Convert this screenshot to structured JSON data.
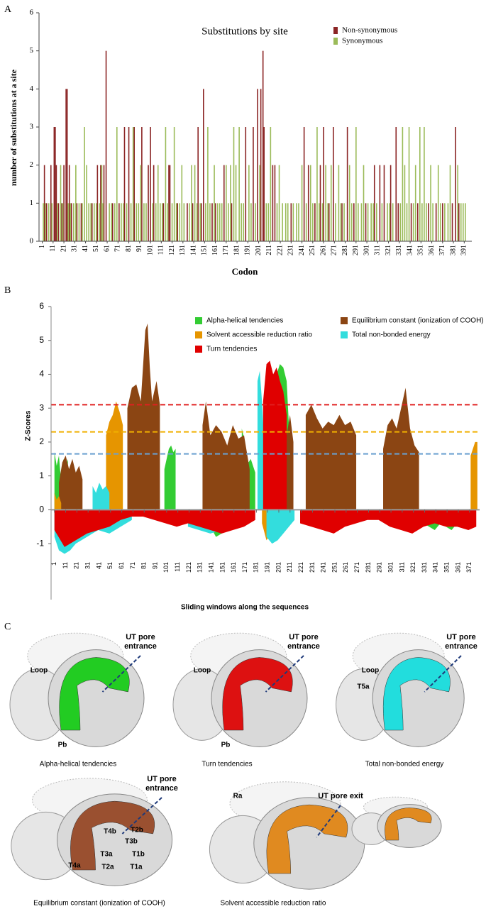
{
  "chart_data": [
    {
      "type": "bar",
      "panel_label": "A",
      "title": "Substitutions by site",
      "x_label": "Codon",
      "y_label": "number of substitutions at a site",
      "xlim": [
        -2,
        398
      ],
      "ylim": [
        0,
        6
      ],
      "yticks": [
        0,
        1,
        2,
        3,
        4,
        5,
        6
      ],
      "xticks": [
        1,
        11,
        21,
        31,
        41,
        51,
        61,
        71,
        81,
        91,
        101,
        111,
        121,
        131,
        141,
        151,
        161,
        171,
        181,
        191,
        201,
        211,
        221,
        231,
        241,
        251,
        261,
        271,
        281,
        291,
        301,
        311,
        321,
        331,
        341,
        351,
        361,
        371,
        381,
        391
      ],
      "series": [
        {
          "name": "Non-synonymous",
          "color": "#8b2525",
          "x": [
            3,
            5,
            9,
            12,
            13,
            14,
            16,
            19,
            21,
            23,
            24,
            26,
            28,
            33,
            37,
            47,
            52,
            55,
            58,
            60,
            66,
            72,
            77,
            81,
            86,
            93,
            99,
            101,
            104,
            113,
            118,
            119,
            126,
            135,
            140,
            145,
            148,
            150,
            158,
            161,
            169,
            176,
            189,
            196,
            200,
            203,
            205,
            206,
            214,
            216,
            231,
            243,
            247,
            253,
            258,
            261,
            266,
            270,
            278,
            283,
            289,
            300,
            308,
            313,
            317,
            323,
            328,
            330,
            342,
            348,
            358,
            365,
            371,
            380,
            383,
            386
          ],
          "values": [
            2,
            1,
            2,
            3,
            3,
            2,
            1,
            1,
            2,
            4,
            4,
            2,
            1,
            1,
            1,
            1,
            2,
            2,
            2,
            5,
            1,
            1,
            3,
            3,
            3,
            3,
            2,
            3,
            2,
            1,
            2,
            2,
            1,
            1,
            1,
            3,
            1,
            4,
            1,
            1,
            2,
            1,
            3,
            3,
            4,
            4,
            5,
            3,
            2,
            2,
            1,
            3,
            2,
            1,
            2,
            3,
            1,
            3,
            1,
            3,
            1,
            1,
            2,
            2,
            2,
            2,
            3,
            1,
            1,
            1,
            1,
            1,
            1,
            1,
            3,
            1
          ]
        },
        {
          "name": "Synonymous",
          "color": "#9bbb59",
          "x": [
            2,
            4,
            7,
            10,
            15,
            18,
            20,
            25,
            27,
            30,
            32,
            35,
            38,
            40,
            42,
            44,
            46,
            49,
            51,
            54,
            56,
            57,
            63,
            65,
            68,
            70,
            74,
            76,
            79,
            83,
            85,
            88,
            90,
            92,
            95,
            97,
            103,
            106,
            108,
            110,
            112,
            115,
            117,
            121,
            123,
            125,
            128,
            130,
            132,
            137,
            139,
            142,
            144,
            147,
            152,
            154,
            156,
            160,
            163,
            165,
            167,
            171,
            173,
            175,
            178,
            180,
            183,
            185,
            187,
            192,
            194,
            198,
            202,
            208,
            210,
            212,
            218,
            220,
            223,
            226,
            228,
            233,
            236,
            238,
            241,
            245,
            249,
            251,
            255,
            257,
            260,
            263,
            265,
            268,
            272,
            275,
            277,
            280,
            285,
            287,
            291,
            293,
            296,
            298,
            302,
            305,
            307,
            310,
            315,
            320,
            322,
            325,
            332,
            334,
            336,
            338,
            340,
            344,
            346,
            350,
            352,
            354,
            356,
            360,
            362,
            367,
            369,
            373,
            376,
            378,
            385,
            388,
            390,
            392
          ],
          "values": [
            1,
            1,
            1,
            1,
            1,
            2,
            1,
            1,
            1,
            1,
            2,
            1,
            1,
            3,
            2,
            1,
            1,
            1,
            1,
            1,
            2,
            1,
            1,
            1,
            1,
            3,
            1,
            1,
            1,
            1,
            3,
            1,
            1,
            2,
            1,
            1,
            1,
            1,
            2,
            1,
            1,
            3,
            1,
            1,
            3,
            1,
            1,
            2,
            1,
            1,
            2,
            2,
            1,
            1,
            1,
            3,
            1,
            2,
            1,
            1,
            1,
            2,
            1,
            2,
            3,
            2,
            3,
            1,
            1,
            2,
            1,
            1,
            2,
            1,
            1,
            3,
            1,
            2,
            1,
            1,
            1,
            1,
            1,
            1,
            2,
            1,
            2,
            1,
            3,
            1,
            1,
            2,
            1,
            2,
            1,
            2,
            1,
            1,
            2,
            1,
            3,
            1,
            1,
            2,
            1,
            1,
            1,
            1,
            1,
            1,
            1,
            1,
            1,
            3,
            2,
            1,
            3,
            1,
            2,
            3,
            1,
            3,
            1,
            2,
            1,
            2,
            1,
            1,
            1,
            2,
            2,
            1,
            1,
            1
          ]
        }
      ]
    },
    {
      "type": "area",
      "panel_label": "B",
      "x_label": "Sliding windows along the sequences",
      "y_label": "Z-Scores",
      "xlim": [
        -2,
        380
      ],
      "ylim": [
        -1.5,
        6
      ],
      "yticks": [
        -1,
        0,
        1,
        2,
        3,
        4,
        5,
        6
      ],
      "xticks": [
        1,
        11,
        21,
        31,
        41,
        51,
        61,
        71,
        81,
        91,
        101,
        111,
        121,
        131,
        141,
        151,
        161,
        171,
        181,
        191,
        201,
        211,
        221,
        231,
        241,
        251,
        261,
        271,
        281,
        291,
        301,
        311,
        321,
        331,
        341,
        351,
        361,
        371
      ],
      "thresholds": [
        {
          "value": 3.1,
          "color": "#e02020"
        },
        {
          "value": 2.3,
          "color": "#f0b000"
        },
        {
          "value": 1.65,
          "color": "#6aa0d0"
        }
      ],
      "series": [
        {
          "name": "Alpha-helical tendencies",
          "color": "#33cc33",
          "x": [
            1,
            3,
            5,
            7,
            9,
            11,
            13,
            null,
            99,
            101,
            103,
            105,
            107,
            109,
            null,
            168,
            170,
            172,
            174,
            176,
            178,
            180,
            null,
            196,
            199,
            202,
            205,
            208,
            210,
            null,
            140,
            145,
            150,
            155,
            160,
            null,
            330,
            335,
            340,
            345,
            350,
            355,
            360
          ],
          "values": [
            1.7,
            1.3,
            1.6,
            0.8,
            1.5,
            1.2,
            1.5,
            null,
            1.2,
            1.5,
            1.8,
            1.9,
            1.7,
            1.8,
            null,
            2.4,
            2.1,
            1.6,
            1.4,
            1.5,
            1.3,
            1.1,
            null,
            3.5,
            4.0,
            4.3,
            4.2,
            3.8,
            2.5,
            null,
            -0.5,
            -0.8,
            -0.7,
            -0.6,
            -0.5,
            null,
            -0.4,
            -0.5,
            -0.6,
            -0.4,
            -0.5,
            -0.6,
            -0.4
          ]
        },
        {
          "name": "Equilibrium constant (ionization of COOH)",
          "color": "#8b4513",
          "x": [
            5,
            8,
            11,
            14,
            17,
            20,
            23,
            26,
            null,
            66,
            70,
            74,
            78,
            82,
            84,
            86,
            88,
            92,
            95,
            null,
            133,
            136,
            140,
            145,
            150,
            155,
            160,
            165,
            170,
            175,
            null,
            205,
            208,
            211,
            214,
            null,
            225,
            230,
            235,
            240,
            245,
            250,
            255,
            260,
            265,
            270,
            null,
            294,
            298,
            302,
            306,
            310,
            314,
            318,
            322,
            326
          ],
          "values": [
            0.8,
            1.4,
            1.6,
            1.2,
            1.5,
            1.1,
            1.3,
            0.9,
            null,
            3.0,
            3.6,
            3.7,
            3.2,
            5.3,
            5.5,
            4.2,
            3.2,
            3.8,
            3.1,
            null,
            2.5,
            3.2,
            2.2,
            2.5,
            2.3,
            1.9,
            2.5,
            2.1,
            2.2,
            1.2,
            null,
            2.7,
            2.2,
            2.8,
            2.0,
            null,
            2.8,
            3.1,
            2.7,
            2.4,
            2.6,
            2.5,
            2.8,
            2.5,
            2.6,
            2.2,
            null,
            1.8,
            2.5,
            2.7,
            2.4,
            3.0,
            3.6,
            2.4,
            1.9,
            1.7
          ]
        },
        {
          "name": "Solvent accessible reduction ratio",
          "color": "#e69500",
          "x": [
            1,
            3,
            5,
            7,
            null,
            47,
            50,
            53,
            56,
            59,
            62,
            null,
            372,
            374,
            376,
            378,
            null,
            186,
            190,
            194,
            198,
            202
          ],
          "values": [
            0.5,
            0.3,
            0.4,
            0.2,
            null,
            2.2,
            2.6,
            2.8,
            3.2,
            2.9,
            2.5,
            null,
            1.6,
            1.8,
            2.0,
            2.0,
            null,
            -0.4,
            -0.9,
            -0.7,
            -0.8,
            -0.3
          ]
        },
        {
          "name": "Total non-bonded energy",
          "color": "#33dddd",
          "x": [
            35,
            38,
            41,
            44,
            47,
            50,
            null,
            182,
            184,
            186,
            188,
            190,
            null,
            1,
            5,
            10,
            15,
            20,
            25,
            30,
            40,
            50,
            60,
            70,
            null,
            120,
            130,
            140,
            150,
            160,
            null,
            190,
            195,
            200,
            205,
            210,
            215
          ],
          "values": [
            0.7,
            0.5,
            0.8,
            0.6,
            0.7,
            0.5,
            null,
            3.8,
            4.1,
            3.2,
            2.0,
            1.0,
            null,
            -0.8,
            -1.2,
            -1.3,
            -1.2,
            -1.0,
            -0.9,
            -0.8,
            -0.6,
            -0.7,
            -0.5,
            -0.3,
            null,
            -0.5,
            -0.6,
            -0.7,
            -0.6,
            -0.5,
            null,
            -0.8,
            -1.0,
            -0.9,
            -0.7,
            -0.5,
            -0.3
          ]
        },
        {
          "name": "Turn tendencies",
          "color": "#e00000",
          "x": [
            187,
            190,
            193,
            196,
            199,
            202,
            205,
            208,
            null,
            1,
            10,
            20,
            30,
            40,
            50,
            60,
            70,
            80,
            90,
            100,
            110,
            120,
            130,
            140,
            150,
            160,
            170,
            180,
            null,
            220,
            230,
            240,
            250,
            260,
            270,
            280,
            290,
            300,
            310,
            320,
            330,
            340,
            350,
            360,
            370,
            377
          ],
          "values": [
            3.2,
            4.3,
            4.4,
            4.0,
            4.2,
            3.8,
            3.5,
            2.8,
            null,
            -0.6,
            -1.1,
            -0.9,
            -0.7,
            -0.6,
            -0.5,
            -0.3,
            -0.2,
            -0.2,
            -0.3,
            -0.4,
            -0.5,
            -0.4,
            -0.5,
            -0.6,
            -0.7,
            -0.6,
            -0.5,
            -0.3,
            null,
            -0.4,
            -0.5,
            -0.6,
            -0.7,
            -0.5,
            -0.4,
            -0.3,
            -0.3,
            -0.5,
            -0.6,
            -0.7,
            -0.5,
            -0.4,
            -0.5,
            -0.5,
            -0.6,
            -0.5
          ]
        }
      ]
    }
  ],
  "structure_panels": {
    "panel_label": "C",
    "panels": [
      {
        "caption": "Alpha-helical tendencies",
        "color": "#22cc22",
        "pore": [
          "UT pore",
          "entrance"
        ],
        "labels": [
          "Loop",
          "Pb"
        ]
      },
      {
        "caption": "Turn tendencies",
        "color": "#dd1111",
        "pore": [
          "UT pore",
          "entrance"
        ],
        "labels": [
          "Loop",
          "Pb"
        ]
      },
      {
        "caption": "Total non-bonded energy",
        "color": "#22dddd",
        "pore": [
          "UT pore",
          "entrance"
        ],
        "labels": [
          "Loop",
          "T5a"
        ]
      },
      {
        "caption": "Equilibrium constant (ionization of COOH)",
        "color": "#9a5030",
        "pore": [
          "UT pore",
          "entrance"
        ],
        "labels": [
          "T4b",
          "T2b",
          "T3b",
          "T3a",
          "T1b",
          "T4a",
          "T2a",
          "T1a"
        ]
      },
      {
        "caption": "Solvent accessible reduction ratio",
        "color": "#e08a20",
        "pore": [
          "UT pore exit"
        ],
        "labels": [
          "Ra"
        ]
      },
      {
        "color": "#e08a20"
      }
    ]
  }
}
